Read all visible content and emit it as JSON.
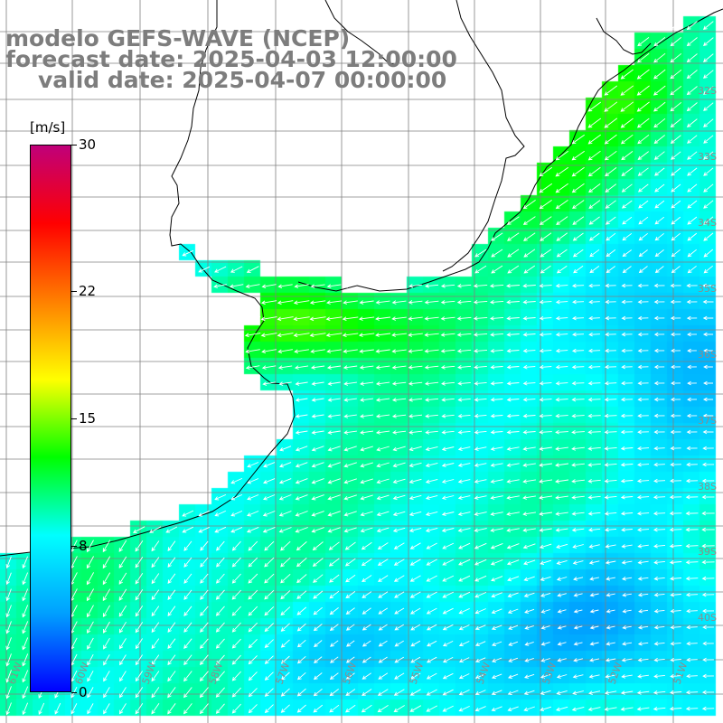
{
  "title": {
    "line1": "modelo GEFS-WAVE (NCEP)",
    "line2": "forecast date: 2025-04-03 12:00:00",
    "line3": "valid date: 2025-04-07 00:00:00"
  },
  "colorbar": {
    "units": "[m/s]",
    "min": 0,
    "max": 30,
    "ticks": [
      {
        "label": "30",
        "value": 30
      },
      {
        "label": "22",
        "value": 22
      },
      {
        "label": "15",
        "value": 15
      },
      {
        "label": "8",
        "value": 8
      },
      {
        "label": "0",
        "value": 0
      }
    ],
    "colors": [
      "#0000ff",
      "#00a0ff",
      "#00ffff",
      "#00ff00",
      "#ffff00",
      "#ff8000",
      "#ff0000",
      "#c0007a"
    ]
  },
  "map": {
    "lon_range": [
      -61.2,
      -50.3
    ],
    "lat_range": [
      -41.2,
      -30.6
    ],
    "land_color": "#ffffff",
    "coast_color": "#000000",
    "grid_color": "#808080",
    "arrow_color": "#ffffff",
    "lat_labels": [
      "32S",
      "33S",
      "34S",
      "35S",
      "36S",
      "37S",
      "38S",
      "39S",
      "40S"
    ],
    "lon_labels": [
      "61W",
      "60W",
      "59W",
      "58W",
      "57W",
      "56W",
      "55W",
      "54W",
      "53W",
      "52W",
      "51W"
    ]
  }
}
